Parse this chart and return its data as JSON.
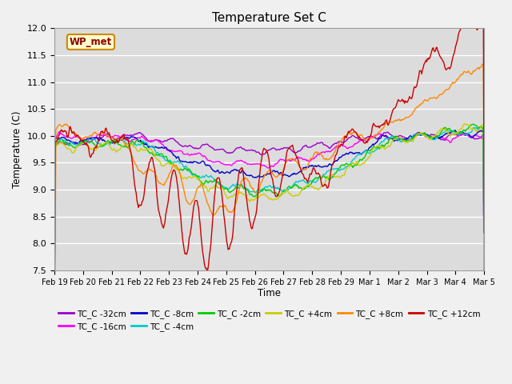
{
  "title": "Temperature Set C",
  "xlabel": "Time",
  "ylabel": "Temperature (C)",
  "ylim": [
    7.5,
    12.0
  ],
  "yticks": [
    7.5,
    8.0,
    8.5,
    9.0,
    9.5,
    10.0,
    10.5,
    11.0,
    11.5,
    12.0
  ],
  "bg_color": "#dcdcdc",
  "fig_color": "#f0f0f0",
  "series": [
    {
      "label": "TC_C -32cm",
      "color": "#9900cc"
    },
    {
      "label": "TC_C -16cm",
      "color": "#ff00ff"
    },
    {
      "label": "TC_C -8cm",
      "color": "#0000cc"
    },
    {
      "label": "TC_C -4cm",
      "color": "#00cccc"
    },
    {
      "label": "TC_C -2cm",
      "color": "#00cc00"
    },
    {
      "label": "TC_C +4cm",
      "color": "#cccc00"
    },
    {
      "label": "TC_C +8cm",
      "color": "#ff8800"
    },
    {
      "label": "TC_C +12cm",
      "color": "#cc0000"
    }
  ],
  "wp_met_box_color": "#ffffcc",
  "wp_met_border_color": "#cc8800",
  "xtick_labels": [
    "Feb 19",
    "Feb 20",
    "Feb 21",
    "Feb 22",
    "Feb 23",
    "Feb 24",
    "Feb 25",
    "Feb 26",
    "Feb 27",
    "Feb 28",
    "Feb 29",
    "Mar 1",
    "Mar 2",
    "Mar 3",
    "Mar 4",
    "Mar 5"
  ],
  "n_points": 600,
  "legend_row1": [
    "TC_C -32cm",
    "TC_C -16cm",
    "TC_C -8cm",
    "TC_C -4cm",
    "TC_C -2cm",
    "TC_C +4cm"
  ],
  "legend_row2": [
    "TC_C +8cm",
    "TC_C +12cm"
  ]
}
